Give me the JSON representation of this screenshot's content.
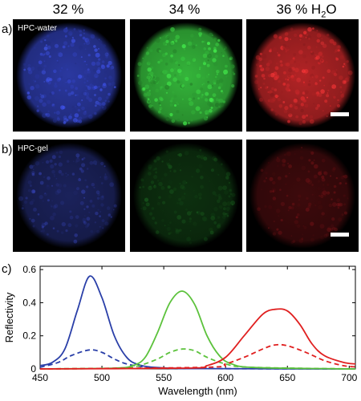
{
  "columns": [
    {
      "label": "32 %"
    },
    {
      "label": "34 %"
    },
    {
      "label": "36 % H",
      "sub": "2",
      "tail": "O"
    }
  ],
  "rows": [
    {
      "label": "a)",
      "inset": "HPC-water",
      "colors": [
        "#3546c8",
        "#34b43a",
        "#d22a2c"
      ],
      "intensity": [
        0.8,
        1.0,
        0.85
      ]
    },
    {
      "label": "b)",
      "inset": "HPC-gel",
      "colors": [
        "#3644b6",
        "#1d6a22",
        "#7a1418"
      ],
      "intensity": [
        0.5,
        0.45,
        0.5
      ]
    }
  ],
  "chart_label": "c)",
  "chart_data": {
    "type": "line",
    "xlabel": "Wavelength (nm)",
    "ylabel": "Reflectivity",
    "xlim": [
      450,
      705
    ],
    "ylim": [
      0,
      0.62
    ],
    "xticks": [
      450,
      500,
      550,
      600,
      650,
      700
    ],
    "yticks": [
      0,
      0.2,
      0.4,
      0.6
    ],
    "grid": false,
    "series": [
      {
        "color": "#2a3fa8",
        "style": "solid",
        "points": [
          [
            450,
            0.02
          ],
          [
            460,
            0.04
          ],
          [
            470,
            0.12
          ],
          [
            480,
            0.35
          ],
          [
            490,
            0.56
          ],
          [
            500,
            0.43
          ],
          [
            510,
            0.2
          ],
          [
            520,
            0.07
          ],
          [
            530,
            0.025
          ],
          [
            545,
            0.008
          ],
          [
            575,
            0.002
          ],
          [
            705,
            0.0
          ]
        ]
      },
      {
        "color": "#2a3fa8",
        "style": "dashed",
        "points": [
          [
            450,
            0.01
          ],
          [
            465,
            0.04
          ],
          [
            475,
            0.08
          ],
          [
            490,
            0.115
          ],
          [
            500,
            0.1
          ],
          [
            510,
            0.06
          ],
          [
            520,
            0.03
          ],
          [
            535,
            0.012
          ],
          [
            560,
            0.003
          ],
          [
            705,
            0.0
          ]
        ]
      },
      {
        "color": "#5cc23c",
        "style": "solid",
        "points": [
          [
            450,
            0.0
          ],
          [
            510,
            0.005
          ],
          [
            525,
            0.02
          ],
          [
            535,
            0.07
          ],
          [
            545,
            0.22
          ],
          [
            555,
            0.4
          ],
          [
            565,
            0.47
          ],
          [
            575,
            0.39
          ],
          [
            585,
            0.2
          ],
          [
            595,
            0.08
          ],
          [
            605,
            0.03
          ],
          [
            625,
            0.008
          ],
          [
            705,
            0.0
          ]
        ]
      },
      {
        "color": "#5cc23c",
        "style": "dashed",
        "points": [
          [
            450,
            0.0
          ],
          [
            515,
            0.005
          ],
          [
            530,
            0.02
          ],
          [
            545,
            0.06
          ],
          [
            555,
            0.1
          ],
          [
            565,
            0.12
          ],
          [
            575,
            0.11
          ],
          [
            585,
            0.07
          ],
          [
            600,
            0.03
          ],
          [
            620,
            0.01
          ],
          [
            705,
            0.0
          ]
        ]
      },
      {
        "color": "#e02020",
        "style": "solid",
        "points": [
          [
            450,
            0.0
          ],
          [
            570,
            0.005
          ],
          [
            585,
            0.02
          ],
          [
            600,
            0.07
          ],
          [
            615,
            0.2
          ],
          [
            630,
            0.33
          ],
          [
            640,
            0.36
          ],
          [
            650,
            0.35
          ],
          [
            660,
            0.27
          ],
          [
            670,
            0.15
          ],
          [
            680,
            0.08
          ],
          [
            695,
            0.04
          ],
          [
            705,
            0.03
          ]
        ]
      },
      {
        "color": "#e02020",
        "style": "dashed",
        "points": [
          [
            450,
            0.0
          ],
          [
            585,
            0.01
          ],
          [
            600,
            0.03
          ],
          [
            615,
            0.07
          ],
          [
            630,
            0.12
          ],
          [
            640,
            0.145
          ],
          [
            650,
            0.14
          ],
          [
            665,
            0.1
          ],
          [
            680,
            0.05
          ],
          [
            695,
            0.02
          ],
          [
            705,
            0.012
          ]
        ]
      }
    ]
  }
}
